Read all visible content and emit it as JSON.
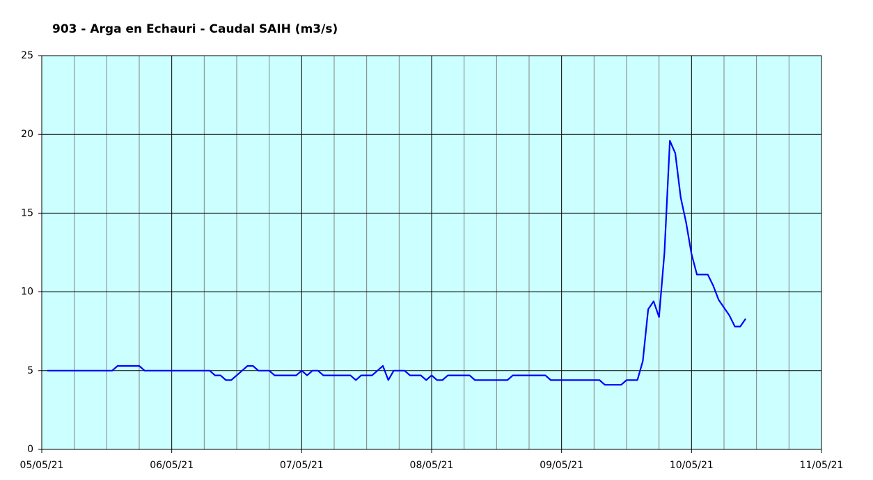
{
  "chart_data": {
    "type": "line",
    "title": "903 - Arga en Echauri - Caudal SAIH (m3/s)",
    "x": [
      1,
      13,
      14,
      18,
      19,
      31,
      32,
      33,
      34,
      35,
      36,
      37,
      38,
      39,
      40,
      42,
      43,
      47,
      48,
      49,
      50,
      51,
      52,
      57,
      58,
      59,
      61,
      62,
      63,
      64,
      65,
      67,
      68,
      70,
      71,
      72,
      73,
      74,
      75,
      79,
      80,
      86,
      87,
      93,
      94,
      103,
      104,
      107,
      108,
      110,
      111,
      112,
      113,
      114,
      115,
      116,
      117,
      118,
      119,
      120,
      121,
      123,
      124,
      125,
      126,
      127,
      128,
      129,
      130
    ],
    "series": [
      {
        "name": "Caudal",
        "color": "#0000ff",
        "values": [
          5.0,
          5.0,
          5.3,
          5.3,
          5.0,
          5.0,
          4.7,
          4.7,
          4.4,
          4.4,
          4.7,
          5.0,
          5.3,
          5.3,
          5.0,
          5.0,
          4.7,
          4.7,
          5.0,
          4.7,
          5.0,
          5.0,
          4.7,
          4.7,
          4.4,
          4.7,
          4.7,
          5.0,
          5.3,
          4.4,
          5.0,
          5.0,
          4.7,
          4.7,
          4.4,
          4.7,
          4.4,
          4.4,
          4.7,
          4.7,
          4.4,
          4.4,
          4.7,
          4.7,
          4.4,
          4.4,
          4.1,
          4.1,
          4.4,
          4.4,
          5.6,
          8.9,
          9.4,
          8.4,
          12.5,
          19.6,
          18.8,
          16.0,
          14.4,
          12.4,
          11.1,
          11.1,
          10.4,
          9.5,
          9.0,
          8.5,
          7.8,
          7.8,
          8.3
        ]
      }
    ],
    "xlim": [
      0,
      144
    ],
    "xticks": [
      {
        "value": 0,
        "label": "05/05/21"
      },
      {
        "value": 24,
        "label": "06/05/21"
      },
      {
        "value": 48,
        "label": "07/05/21"
      },
      {
        "value": 72,
        "label": "08/05/21"
      },
      {
        "value": 96,
        "label": "09/05/21"
      },
      {
        "value": 120,
        "label": "10/05/21"
      },
      {
        "value": 144,
        "label": "11/05/21"
      }
    ],
    "xminorticks": [
      6,
      12,
      18,
      30,
      36,
      42,
      54,
      60,
      66,
      78,
      84,
      90,
      102,
      108,
      114,
      126,
      132,
      138
    ],
    "ylim": [
      0,
      25
    ],
    "yticks": [
      0,
      5,
      10,
      15,
      20,
      25
    ],
    "grid": true,
    "plot_background": "#ccffff"
  }
}
